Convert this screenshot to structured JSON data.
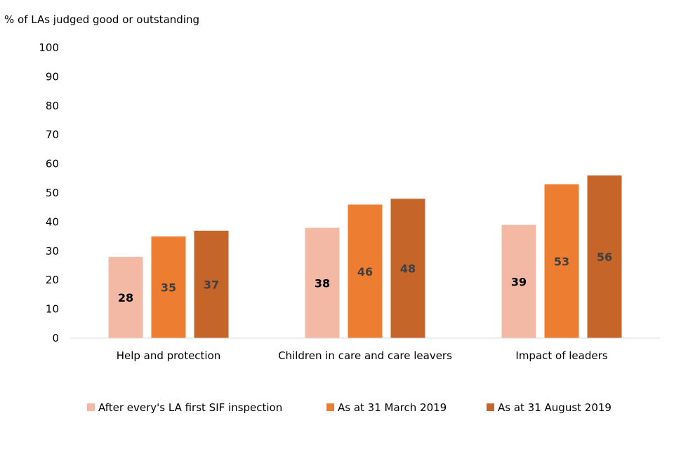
{
  "chart_data": {
    "type": "bar",
    "title": "",
    "ylabel": "% of LAs judged good or outstanding",
    "xlabel": "",
    "ylim": [
      0,
      100
    ],
    "yticks": [
      0,
      10,
      20,
      30,
      40,
      50,
      60,
      70,
      80,
      90,
      100
    ],
    "grid": false,
    "legend_position": "bottom",
    "categories": [
      "Help and protection",
      "Children in care and care leavers",
      "Impact of leaders"
    ],
    "series": [
      {
        "name": "After every's LA first SIF inspection",
        "values": [
          28,
          38,
          39
        ],
        "color": "#F4B9A4",
        "label_color": "#000000"
      },
      {
        "name": "As at 31 March 2019",
        "values": [
          35,
          46,
          53
        ],
        "color": "#ED7D31",
        "label_color": "#404040"
      },
      {
        "name": "As at 31 August 2019",
        "values": [
          37,
          48,
          56
        ],
        "color": "#C5652A",
        "label_color": "#404040"
      }
    ]
  }
}
